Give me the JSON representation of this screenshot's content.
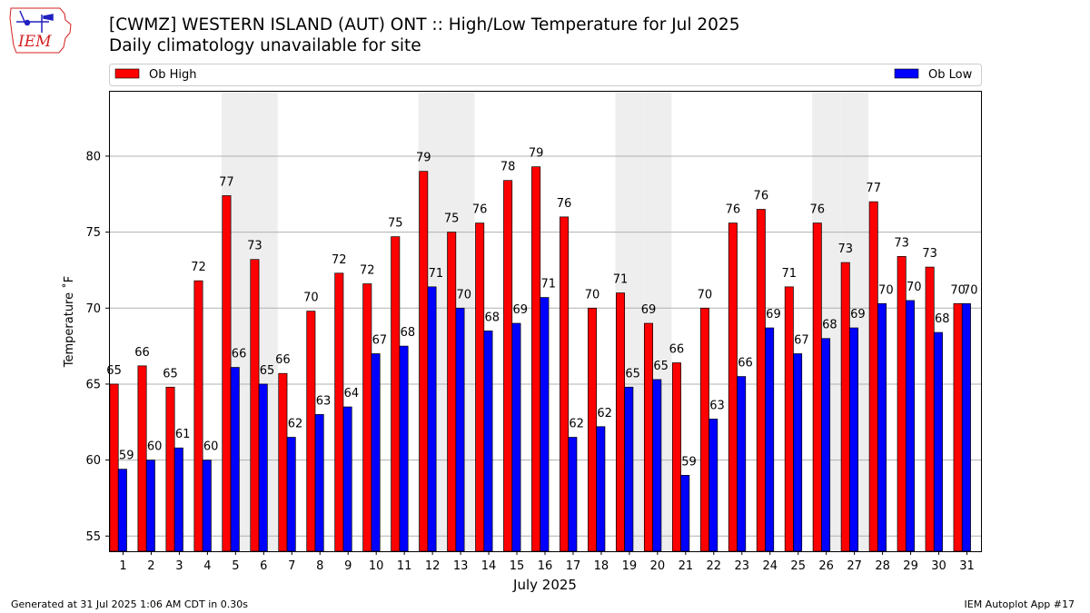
{
  "header": {
    "title_line1": "[CWMZ] WESTERN ISLAND (AUT)  ONT :: High/Low Temperature for Jul 2025",
    "title_line2": "Daily climatology unavailable for site",
    "logo_text": "IEM"
  },
  "footer": {
    "generated": "Generated at 31 Jul 2025 1:06 AM CDT in 0.30s",
    "app": "IEM Autoplot App #17"
  },
  "colors": {
    "high": "#ff0000",
    "low": "#0000ff",
    "weekend_band": "#eeeeee",
    "grid": "#b0b0b0",
    "logo": "#d62020"
  },
  "chart_data": {
    "type": "bar",
    "title": "[CWMZ] WESTERN ISLAND (AUT)  ONT :: High/Low Temperature for Jul 2025",
    "subtitle": "Daily climatology unavailable for site",
    "xlabel": "July 2025",
    "ylabel": "Temperature ˚F",
    "ylim": [
      54,
      84.3
    ],
    "yticks": [
      55,
      60,
      65,
      70,
      75,
      80
    ],
    "grid": true,
    "legend_position": "top, above plot",
    "categories": [
      "1",
      "2",
      "3",
      "4",
      "5",
      "6",
      "7",
      "8",
      "9",
      "10",
      "11",
      "12",
      "13",
      "14",
      "15",
      "16",
      "17",
      "18",
      "19",
      "20",
      "21",
      "22",
      "23",
      "24",
      "25",
      "26",
      "27",
      "28",
      "29",
      "30",
      "31"
    ],
    "shaded_days": [
      5,
      6,
      12,
      13,
      19,
      20,
      26,
      27
    ],
    "series": [
      {
        "name": "Ob High",
        "values": [
          65.0,
          66.2,
          64.8,
          71.8,
          77.4,
          73.2,
          65.7,
          69.8,
          72.3,
          71.6,
          74.7,
          79.0,
          75.0,
          75.6,
          78.4,
          79.3,
          76.0,
          70.0,
          71.0,
          69.0,
          66.4,
          70.0,
          75.6,
          76.5,
          71.4,
          75.6,
          73.0,
          77.0,
          73.4,
          72.7,
          70.3
        ],
        "labels": [
          "65",
          "66",
          "65",
          "72",
          "77",
          "73",
          "66",
          "70",
          "72",
          "72",
          "75",
          "79",
          "75",
          "76",
          "78",
          "79",
          "76",
          "70",
          "71",
          "69",
          "66",
          "70",
          "76",
          "76",
          "71",
          "76",
          "73",
          "77",
          "73",
          "73",
          "70"
        ]
      },
      {
        "name": "Ob Low",
        "values": [
          59.4,
          60.0,
          60.8,
          60.0,
          66.1,
          65.0,
          61.5,
          63.0,
          63.5,
          67.0,
          67.5,
          71.4,
          70.0,
          68.5,
          69.0,
          70.7,
          61.5,
          62.2,
          64.8,
          65.3,
          59.0,
          62.7,
          65.5,
          68.7,
          67.0,
          68.0,
          68.7,
          70.3,
          70.5,
          68.4,
          70.3
        ],
        "labels": [
          "59",
          "60",
          "61",
          "60",
          "66",
          "65",
          "62",
          "63",
          "64",
          "67",
          "68",
          "71",
          "70",
          "68",
          "69",
          "71",
          "62",
          "62",
          "65",
          "65",
          "59",
          "63",
          "66",
          "69",
          "67",
          "68",
          "69",
          "70",
          "70",
          "68",
          "70"
        ]
      }
    ]
  }
}
